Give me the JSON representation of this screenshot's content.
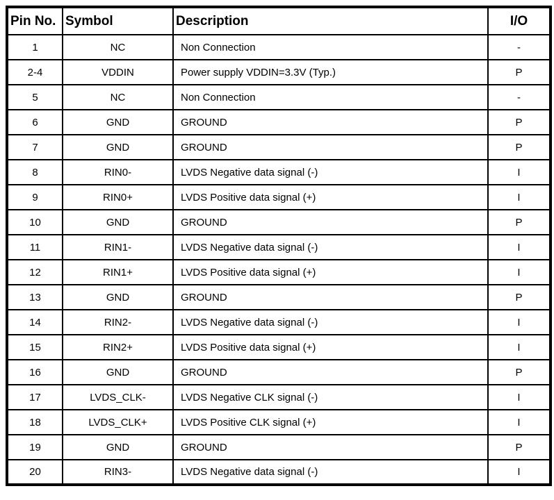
{
  "colors": {
    "border": "#000000",
    "text": "#000000",
    "background": "#ffffff"
  },
  "table": {
    "columns": [
      {
        "key": "pin",
        "label": "Pin No."
      },
      {
        "key": "symbol",
        "label": "Symbol"
      },
      {
        "key": "description",
        "label": "Description"
      },
      {
        "key": "io",
        "label": "I/O"
      }
    ],
    "rows": [
      {
        "pin": "1",
        "symbol": "NC",
        "description": "Non Connection",
        "io": "-"
      },
      {
        "pin": "2-4",
        "symbol": "VDDIN",
        "description": "Power supply  VDDIN=3.3V (Typ.)",
        "io": "P"
      },
      {
        "pin": "5",
        "symbol": "NC",
        "description": "Non Connection",
        "io": "-"
      },
      {
        "pin": "6",
        "symbol": "GND",
        "description": "GROUND",
        "io": "P"
      },
      {
        "pin": "7",
        "symbol": "GND",
        "description": "GROUND",
        "io": "P"
      },
      {
        "pin": "8",
        "symbol": "RIN0-",
        "description": "LVDS Negative data signal (-)",
        "io": "I"
      },
      {
        "pin": "9",
        "symbol": "RIN0+",
        "description": "LVDS Positive data signal (+)",
        "io": "I"
      },
      {
        "pin": "10",
        "symbol": "GND",
        "description": "GROUND",
        "io": "P"
      },
      {
        "pin": "11",
        "symbol": "RIN1-",
        "description": "LVDS Negative data signal (-)",
        "io": "I"
      },
      {
        "pin": "12",
        "symbol": "RIN1+",
        "description": "LVDS Positive data signal (+)",
        "io": "I"
      },
      {
        "pin": "13",
        "symbol": "GND",
        "description": "GROUND",
        "io": "P"
      },
      {
        "pin": "14",
        "symbol": "RIN2-",
        "description": "LVDS Negative data signal (-)",
        "io": "I"
      },
      {
        "pin": "15",
        "symbol": "RIN2+",
        "description": "LVDS Positive data signal (+)",
        "io": "I"
      },
      {
        "pin": "16",
        "symbol": "GND",
        "description": "GROUND",
        "io": "P"
      },
      {
        "pin": "17",
        "symbol": "LVDS_CLK-",
        "description": "LVDS Negative CLK signal (-)",
        "io": "I"
      },
      {
        "pin": "18",
        "symbol": "LVDS_CLK+",
        "description": "LVDS Positive CLK signal (+)",
        "io": "I"
      },
      {
        "pin": "19",
        "symbol": "GND",
        "description": "GROUND",
        "io": "P"
      },
      {
        "pin": "20",
        "symbol": "RIN3-",
        "description": "LVDS Negative data signal (-)",
        "io": "I"
      }
    ]
  }
}
